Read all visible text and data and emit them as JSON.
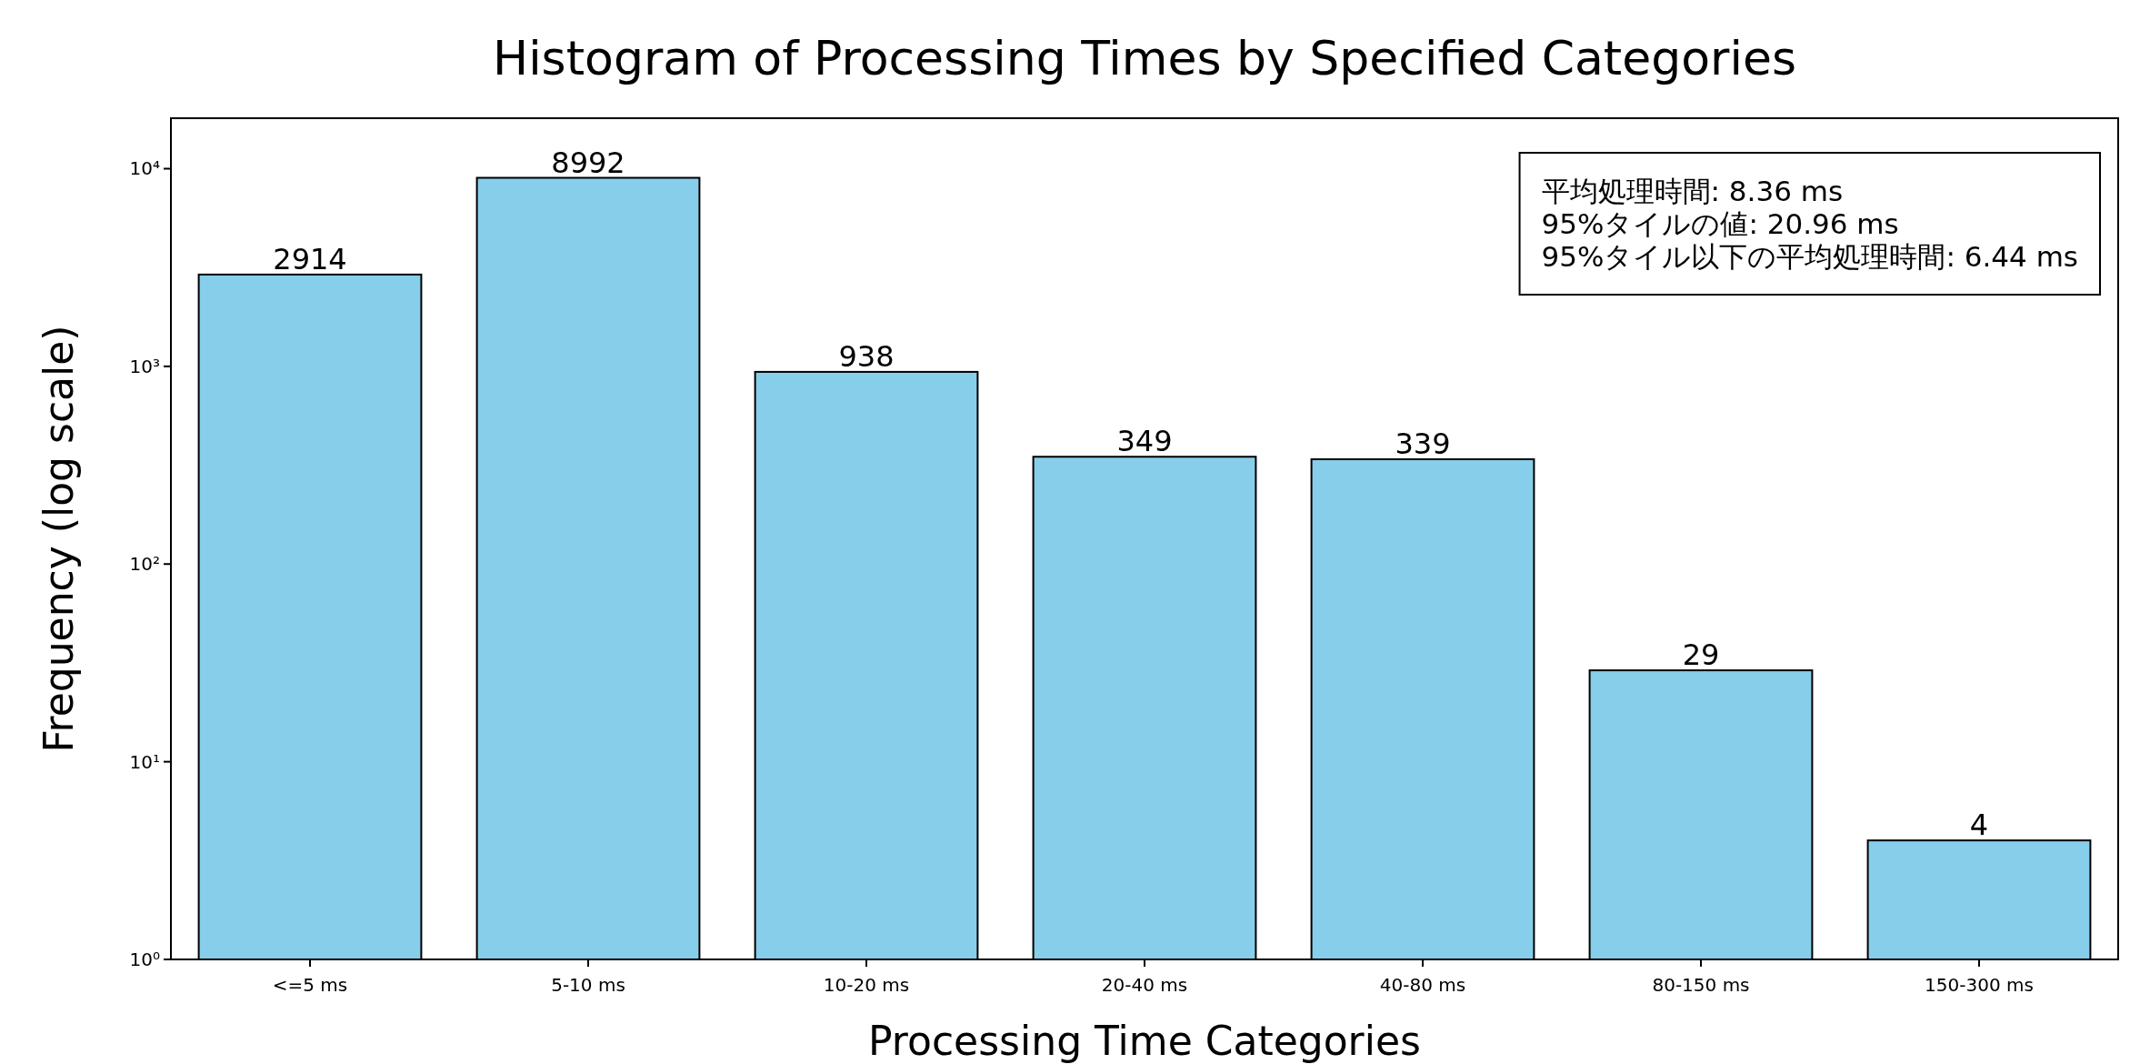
{
  "chart_data": {
    "type": "bar",
    "title": "Histogram of Processing Times by Specified Categories",
    "xlabel": "Processing Time Categories",
    "ylabel": "Frequency (log scale)",
    "categories": [
      "<=5 ms",
      "5-10 ms",
      "10-20 ms",
      "20-40 ms",
      "40-80 ms",
      "80-150 ms",
      "150-300 ms"
    ],
    "values": [
      2914,
      8992,
      938,
      349,
      339,
      29,
      4
    ],
    "color": "#87ceeb",
    "log": "y",
    "ylim": [
      1,
      18000
    ],
    "yticks": [
      {
        "value": 1,
        "label": "10⁰"
      },
      {
        "value": 10,
        "label": "10¹"
      },
      {
        "value": 100,
        "label": "10²"
      },
      {
        "value": 1000,
        "label": "10³"
      },
      {
        "value": 10000,
        "label": "10⁴"
      }
    ],
    "data_labels": true,
    "annotations": [
      "平均処理時間: 8.36 ms",
      "95%タイルの値: 20.96 ms",
      "95%タイル以下の平均処理時間: 6.44 ms"
    ]
  }
}
